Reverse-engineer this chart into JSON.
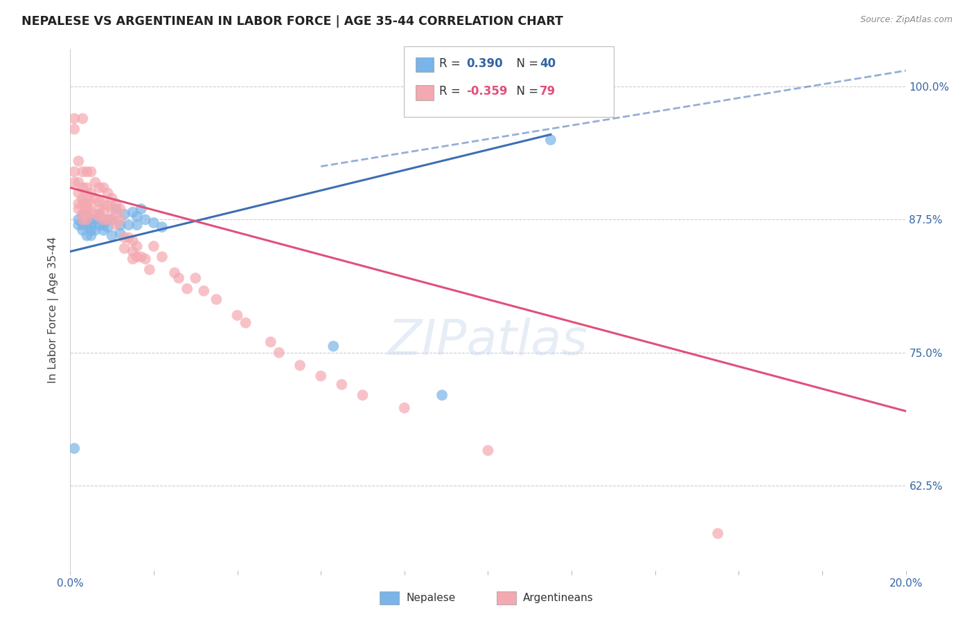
{
  "title": "NEPALESE VS ARGENTINEAN IN LABOR FORCE | AGE 35-44 CORRELATION CHART",
  "source": "Source: ZipAtlas.com",
  "ylabel": "In Labor Force | Age 35-44",
  "ytick_labels": [
    "62.5%",
    "75.0%",
    "87.5%",
    "100.0%"
  ],
  "ytick_values": [
    0.625,
    0.75,
    0.875,
    1.0
  ],
  "xmin": 0.0,
  "xmax": 0.2,
  "ymin": 0.545,
  "ymax": 1.035,
  "blue_color": "#7ab4e8",
  "pink_color": "#f4a8b0",
  "blue_line_color": "#3c6eb4",
  "pink_line_color": "#e0507a",
  "blue_line_x0": 0.0,
  "blue_line_x1": 0.115,
  "blue_line_y0": 0.845,
  "blue_line_y1": 0.955,
  "dashed_line_x0": 0.06,
  "dashed_line_x1": 0.2,
  "dashed_line_y0": 0.925,
  "dashed_line_y1": 1.015,
  "pink_line_x0": 0.0,
  "pink_line_x1": 0.2,
  "pink_line_y0": 0.905,
  "pink_line_y1": 0.695,
  "nepalese_x": [
    0.001,
    0.002,
    0.002,
    0.003,
    0.003,
    0.003,
    0.003,
    0.004,
    0.004,
    0.004,
    0.004,
    0.005,
    0.005,
    0.005,
    0.005,
    0.006,
    0.006,
    0.007,
    0.007,
    0.008,
    0.008,
    0.009,
    0.009,
    0.01,
    0.01,
    0.011,
    0.012,
    0.012,
    0.013,
    0.014,
    0.015,
    0.016,
    0.016,
    0.017,
    0.018,
    0.02,
    0.022,
    0.063,
    0.089,
    0.115
  ],
  "nepalese_y": [
    0.66,
    0.87,
    0.875,
    0.88,
    0.875,
    0.87,
    0.865,
    0.88,
    0.875,
    0.87,
    0.86,
    0.875,
    0.87,
    0.865,
    0.86,
    0.875,
    0.865,
    0.88,
    0.87,
    0.87,
    0.865,
    0.875,
    0.868,
    0.875,
    0.86,
    0.885,
    0.87,
    0.862,
    0.88,
    0.87,
    0.882,
    0.878,
    0.87,
    0.885,
    0.875,
    0.872,
    0.868,
    0.756,
    0.71,
    0.95
  ],
  "argentinean_x": [
    0.001,
    0.001,
    0.001,
    0.001,
    0.002,
    0.002,
    0.002,
    0.002,
    0.002,
    0.003,
    0.003,
    0.003,
    0.003,
    0.003,
    0.003,
    0.003,
    0.004,
    0.004,
    0.004,
    0.004,
    0.004,
    0.004,
    0.004,
    0.005,
    0.005,
    0.005,
    0.005,
    0.006,
    0.006,
    0.006,
    0.007,
    0.007,
    0.007,
    0.007,
    0.008,
    0.008,
    0.008,
    0.008,
    0.009,
    0.009,
    0.009,
    0.01,
    0.01,
    0.01,
    0.011,
    0.011,
    0.011,
    0.012,
    0.012,
    0.013,
    0.013,
    0.014,
    0.015,
    0.015,
    0.015,
    0.016,
    0.016,
    0.017,
    0.018,
    0.019,
    0.02,
    0.022,
    0.025,
    0.026,
    0.028,
    0.03,
    0.032,
    0.035,
    0.04,
    0.042,
    0.048,
    0.05,
    0.055,
    0.06,
    0.065,
    0.07,
    0.08,
    0.1,
    0.155
  ],
  "argentinean_y": [
    0.97,
    0.96,
    0.92,
    0.91,
    0.93,
    0.91,
    0.9,
    0.89,
    0.885,
    0.97,
    0.92,
    0.905,
    0.895,
    0.89,
    0.88,
    0.875,
    0.92,
    0.905,
    0.895,
    0.89,
    0.885,
    0.88,
    0.875,
    0.92,
    0.9,
    0.89,
    0.882,
    0.91,
    0.895,
    0.88,
    0.905,
    0.892,
    0.885,
    0.878,
    0.905,
    0.89,
    0.882,
    0.875,
    0.9,
    0.888,
    0.875,
    0.895,
    0.885,
    0.875,
    0.89,
    0.88,
    0.87,
    0.885,
    0.875,
    0.858,
    0.848,
    0.858,
    0.855,
    0.845,
    0.838,
    0.85,
    0.84,
    0.84,
    0.838,
    0.828,
    0.85,
    0.84,
    0.825,
    0.82,
    0.81,
    0.82,
    0.808,
    0.8,
    0.785,
    0.778,
    0.76,
    0.75,
    0.738,
    0.728,
    0.72,
    0.71,
    0.698,
    0.658,
    0.58
  ]
}
